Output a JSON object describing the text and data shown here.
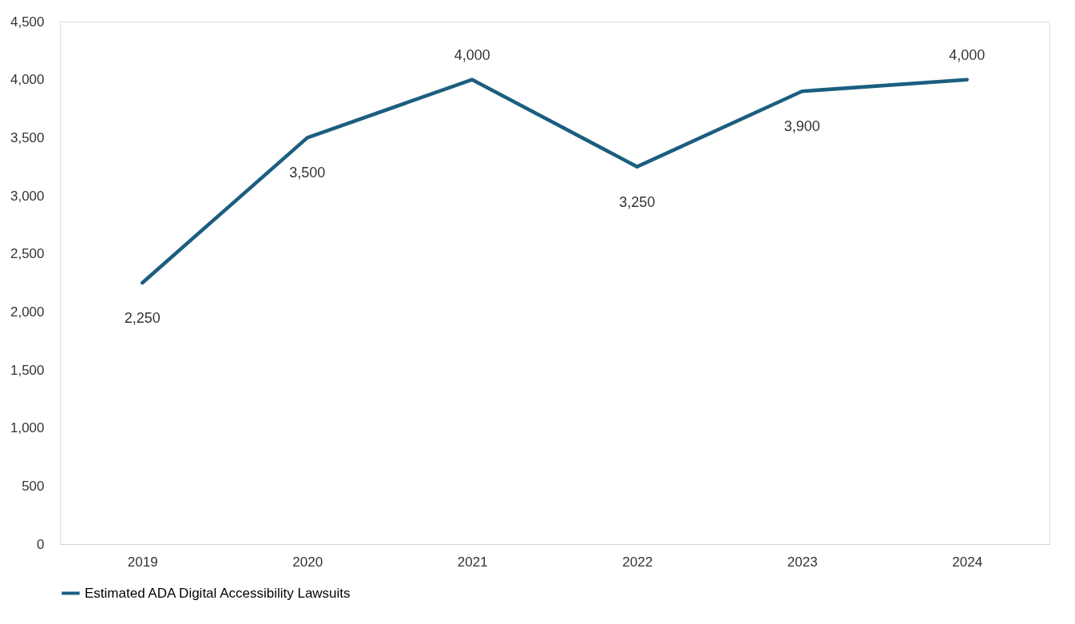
{
  "chart_data": {
    "type": "line",
    "categories": [
      "2019",
      "2020",
      "2021",
      "2022",
      "2023",
      "2024"
    ],
    "series": [
      {
        "name": "Estimated ADA Digital Accessibility Lawsuits",
        "color": "#1b5e7f",
        "values": [
          2250,
          3500,
          4000,
          3250,
          3900,
          4000
        ],
        "value_labels": [
          "2,250",
          "3,500",
          "4,000",
          "3,250",
          "3,900",
          "4,000"
        ]
      }
    ],
    "ylim": [
      0,
      4500
    ],
    "yticks": [
      0,
      {
        "value": 500,
        "label": "500"
      },
      {
        "value": 1000,
        "label": "1,000"
      },
      {
        "value": 1500,
        "label": "1,500"
      },
      {
        "value": 2000,
        "label": "2,000"
      },
      {
        "value": 2500,
        "label": "2,500"
      },
      {
        "value": 3000,
        "label": "3,000"
      },
      {
        "value": 3500,
        "label": "3,500"
      },
      {
        "value": 4000,
        "label": "4,000"
      },
      {
        "value": 4500,
        "label": "4,500"
      }
    ],
    "legend": "bottom"
  }
}
